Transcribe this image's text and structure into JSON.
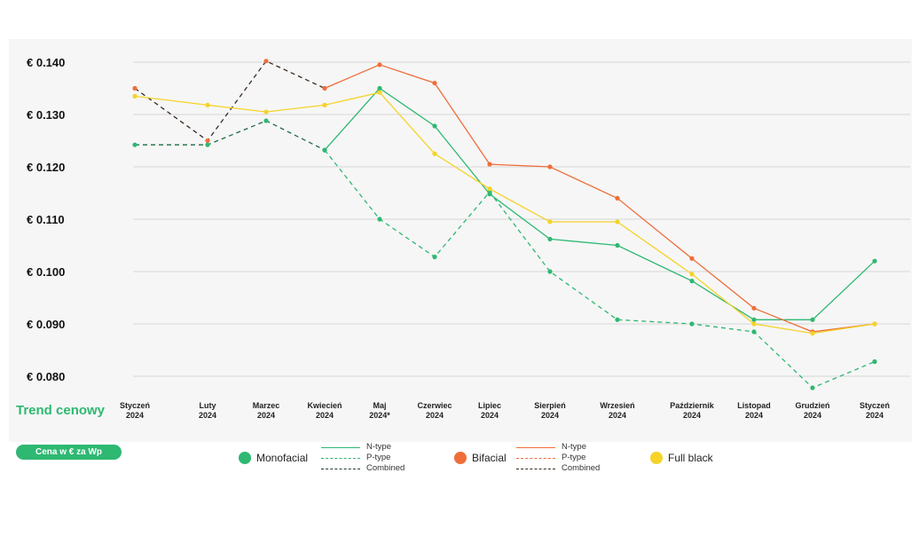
{
  "chart_data": {
    "type": "line",
    "categories": [
      [
        "Styczeń",
        "2024"
      ],
      [
        "Luty",
        "2024"
      ],
      [
        "Marzec",
        "2024"
      ],
      [
        "Kwiecień",
        "2024"
      ],
      [
        "Maj",
        "2024*"
      ],
      [
        "Czerwiec",
        "2024"
      ],
      [
        "Lipiec",
        "2024"
      ],
      [
        "Sierpień",
        "2024"
      ],
      [
        "Wrzesień",
        "2024"
      ],
      [
        "Październik",
        "2024"
      ],
      [
        "Listopad",
        "2024"
      ],
      [
        "Grudzień",
        "2024"
      ],
      [
        "Styczeń",
        "2024"
      ]
    ],
    "yticks": [
      "€ 0.140",
      "€ 0.130",
      "€ 0.120",
      "€ 0.110",
      "€ 0.100",
      "€ 0.090",
      "€ 0.080"
    ],
    "ytick_values": [
      0.14,
      0.13,
      0.12,
      0.11,
      0.1,
      0.09,
      0.08
    ],
    "ylim": [
      0.08,
      0.14
    ],
    "grid": true,
    "title": "Trend cenowy",
    "unit_badge": "Cena w € za Wp",
    "series": [
      {
        "group": "Monofacial",
        "name": "N-type",
        "color": "#2eb872",
        "style": "solid",
        "values": [
          null,
          null,
          null,
          null,
          0.135,
          0.1278,
          0.1148,
          0.1062,
          0.105,
          0.0982,
          0.0908,
          0.0908,
          0.102
        ]
      },
      {
        "group": "Monofacial",
        "name": "P-type",
        "color": "#2eb872",
        "style": "dashed",
        "values": [
          null,
          null,
          null,
          0.1232,
          0.11,
          0.1028,
          0.1152,
          0.1,
          0.0908,
          0.09,
          0.0885,
          0.0778,
          0.0828
        ]
      },
      {
        "group": "Monofacial",
        "name": "Combined",
        "color": "#1e6b45",
        "style": "dashed",
        "values": [
          0.1242,
          0.1242,
          0.1288,
          0.1232,
          null,
          null,
          null,
          null,
          null,
          null,
          null,
          null,
          null
        ]
      },
      {
        "group": "Bifacial",
        "name": "N-type",
        "color": "#ef6e3a",
        "style": "solid",
        "values": [
          null,
          null,
          null,
          null,
          0.1395,
          0.136,
          0.1205,
          0.12,
          0.114,
          0.1025,
          0.093,
          0.0885,
          0.09
        ]
      },
      {
        "group": "Bifacial",
        "name": "Combined",
        "color": "#3a2a20",
        "style": "dashed",
        "values": [
          0.135,
          0.125,
          0.1402,
          0.135,
          null,
          null,
          null,
          null,
          null,
          null,
          null,
          null,
          null
        ]
      },
      {
        "group": "Full black",
        "name": "Full black",
        "color": "#f5d327",
        "style": "solid",
        "values": [
          0.1335,
          0.1318,
          0.1305,
          0.1318,
          0.1342,
          0.1225,
          0.1158,
          0.1095,
          0.1095,
          0.0995,
          0.09,
          0.0882,
          0.09
        ]
      }
    ],
    "legend": {
      "placement": "bottom",
      "groups": [
        {
          "label": "Monofacial",
          "color": "#2eb872",
          "sub": [
            {
              "label": "N-type",
              "color": "#2eb872",
              "style": "solid"
            },
            {
              "label": "P-type",
              "color": "#2eb872",
              "style": "dashed"
            },
            {
              "label": "Combined",
              "color": "#1e3d2c",
              "style": "dashed"
            }
          ]
        },
        {
          "label": "Bifacial",
          "color": "#ef6e3a",
          "sub": [
            {
              "label": "N-type",
              "color": "#ef6e3a",
              "style": "solid"
            },
            {
              "label": "P-type",
              "color": "#ef6e3a",
              "style": "dashed"
            },
            {
              "label": "Combined",
              "color": "#3a2a20",
              "style": "dashed"
            }
          ]
        },
        {
          "label": "Full black",
          "color": "#f5d327",
          "sub": []
        }
      ]
    }
  }
}
